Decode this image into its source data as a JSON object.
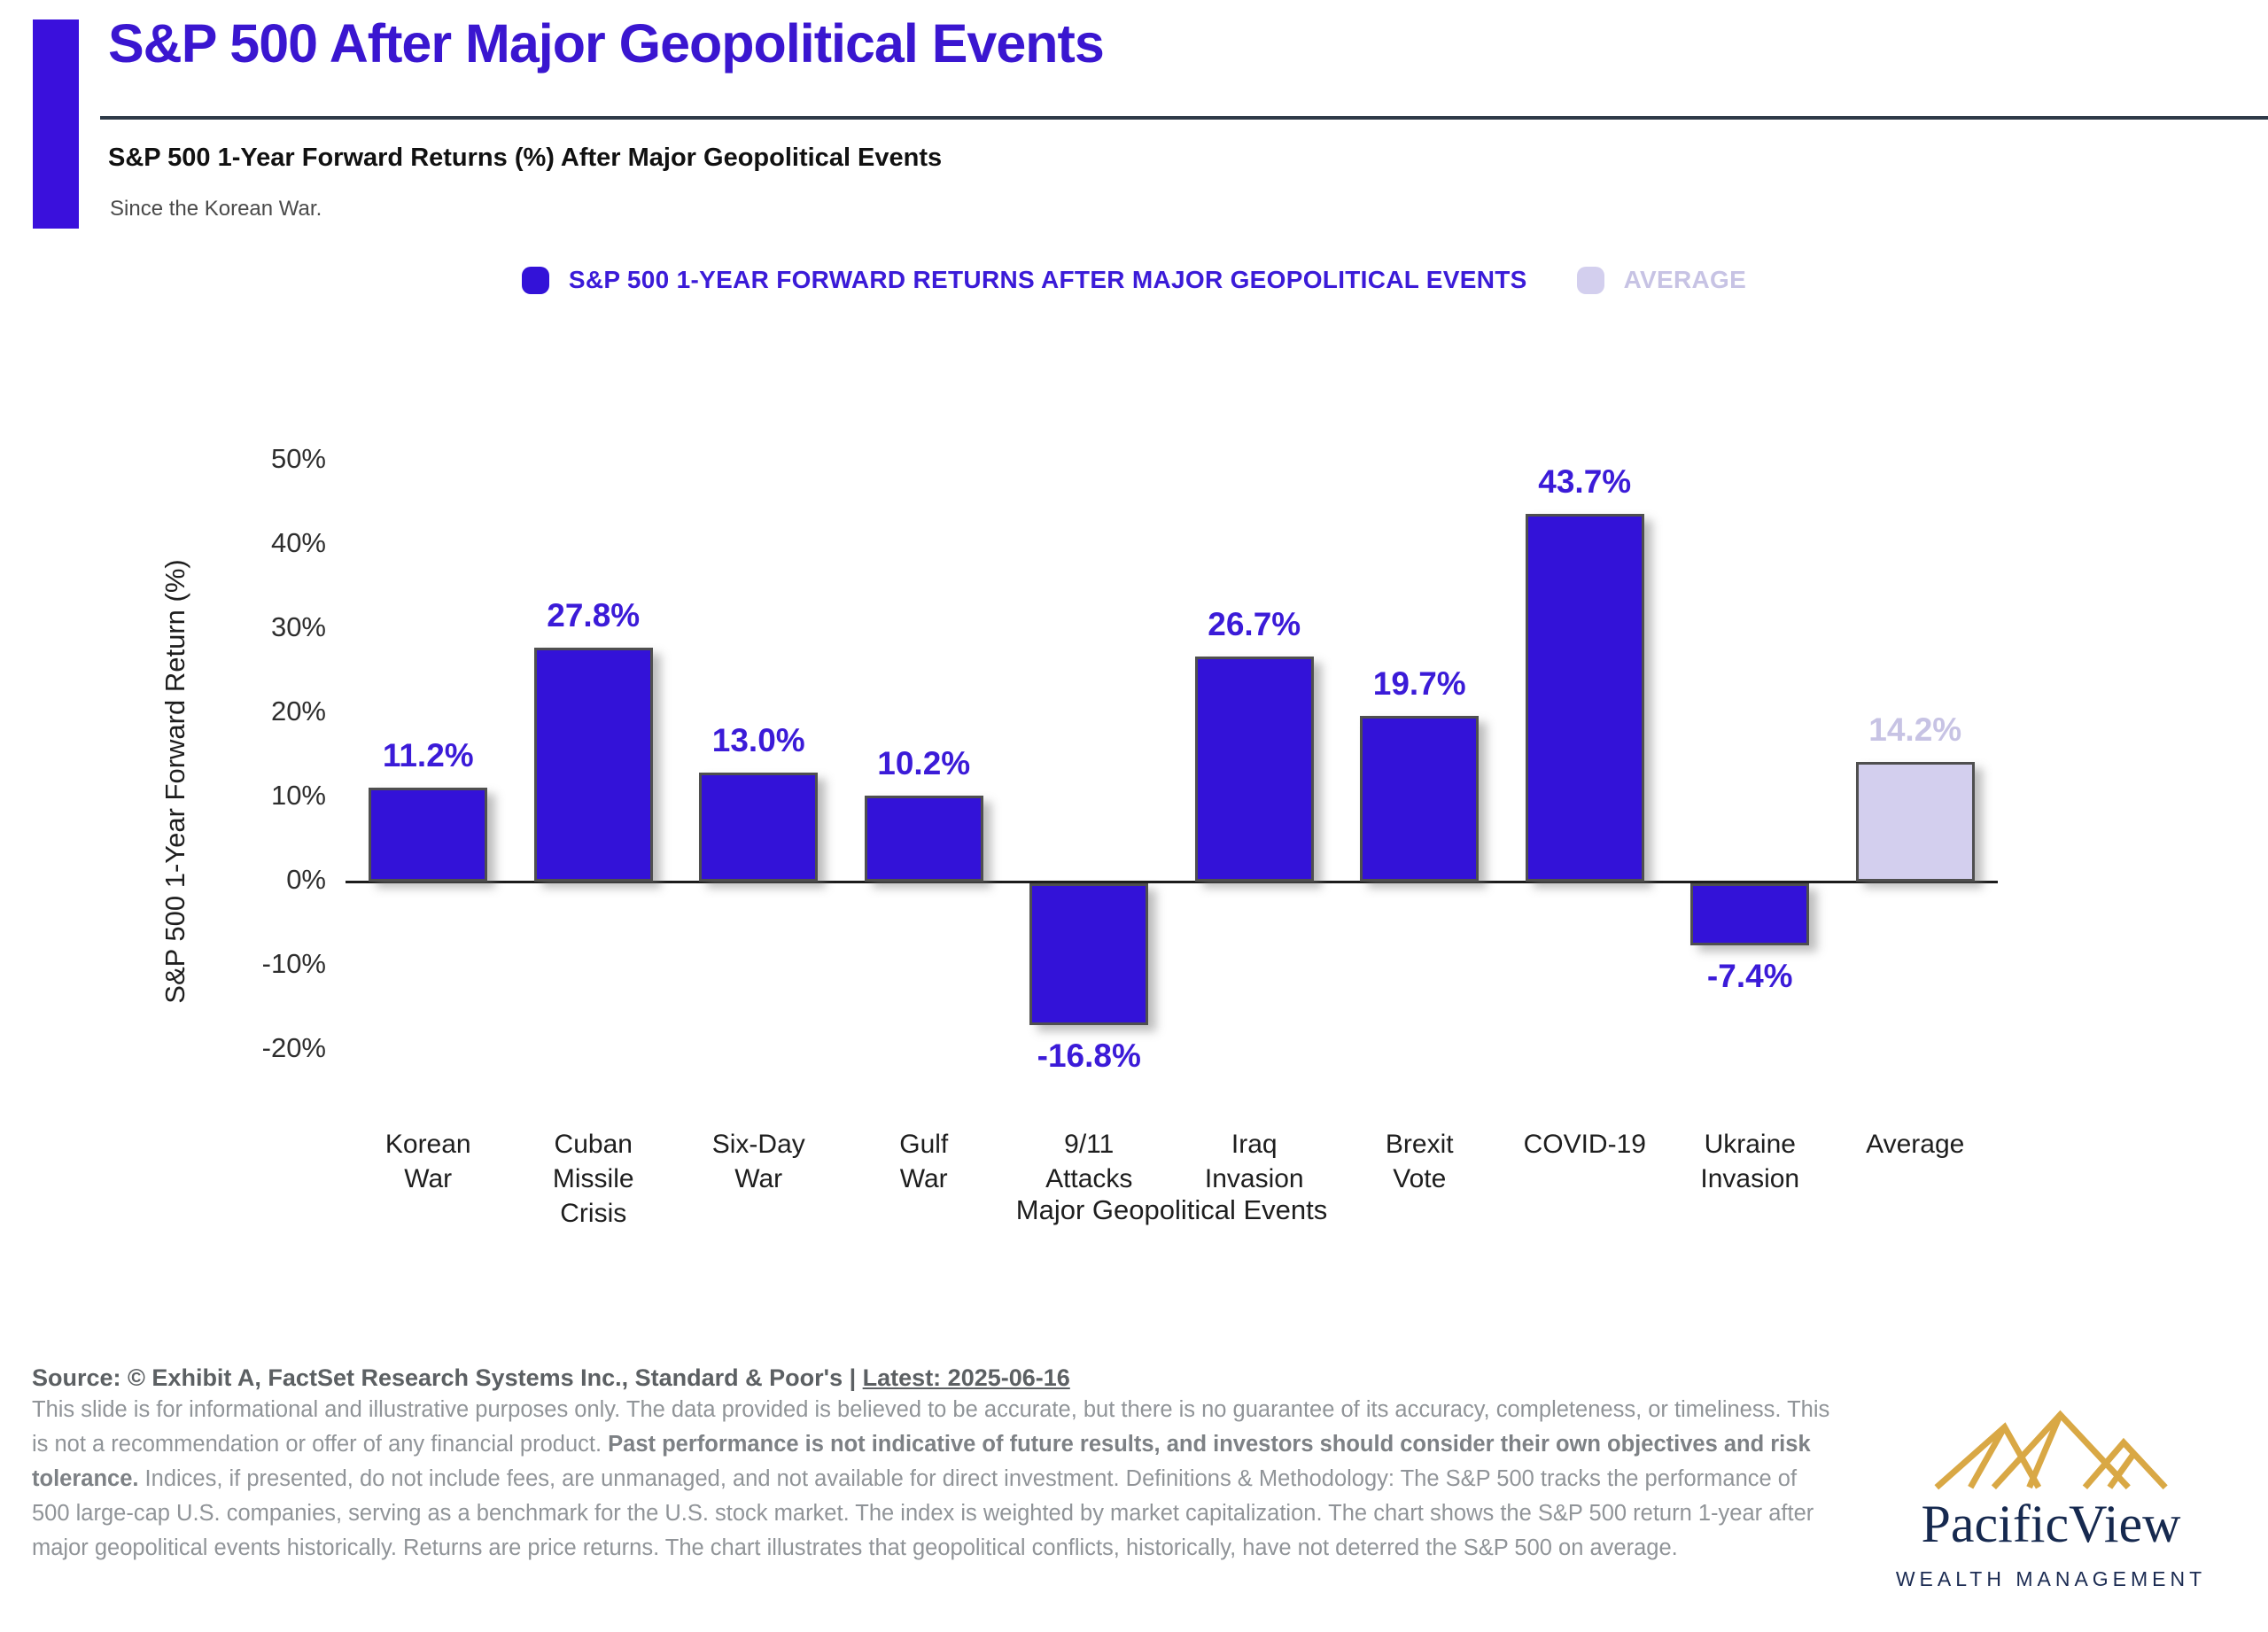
{
  "header": {
    "title": "S&P 500 After Major Geopolitical Events",
    "subtitle": "S&P 500 1-Year Forward Returns (%) After Major Geopolitical Events",
    "subnote": "Since the Korean War.",
    "accent_color": "#3a10dc"
  },
  "legend": [
    {
      "label": "S&P 500 1-YEAR FORWARD RETURNS AFTER MAJOR GEOPOLITICAL EVENTS",
      "swatch_color": "#3312d8",
      "text_color": "#3b1bd8"
    },
    {
      "label": "AVERAGE",
      "swatch_color": "#d3cfee",
      "text_color": "#c7c3e4"
    }
  ],
  "chart_data": {
    "type": "bar",
    "title": "S&P 500 1-Year Forward Returns (%) After Major Geopolitical Events",
    "categories": [
      "Korean\nWar",
      "Cuban\nMissile\nCrisis",
      "Six-Day\nWar",
      "Gulf\nWar",
      "9/11\nAttacks",
      "Iraq\nInvasion",
      "Brexit\nVote",
      "COVID-19",
      "Ukraine\nInvasion",
      "Average"
    ],
    "values": [
      11.2,
      27.8,
      13.0,
      10.2,
      -16.8,
      26.7,
      19.7,
      43.7,
      -7.4,
      14.2
    ],
    "value_labels": [
      "11.2%",
      "27.8%",
      "13.0%",
      "10.2%",
      "-16.8%",
      "26.7%",
      "19.7%",
      "43.7%",
      "-7.4%",
      "14.2%"
    ],
    "bar_colors": [
      "#3312d8",
      "#3312d8",
      "#3312d8",
      "#3312d8",
      "#3312d8",
      "#3312d8",
      "#3312d8",
      "#3312d8",
      "#3312d8",
      "#d3cfee"
    ],
    "label_colors": [
      "#3b1bd8",
      "#3b1bd8",
      "#3b1bd8",
      "#3b1bd8",
      "#3b1bd8",
      "#3b1bd8",
      "#3b1bd8",
      "#3b1bd8",
      "#3b1bd8",
      "#c7c3e4"
    ],
    "xlabel": "Major Geopolitical Events",
    "ylabel": "S&P 500 1-Year Forward Return (%)",
    "ylim": [
      -25,
      55
    ],
    "yticks": [
      50,
      40,
      30,
      20,
      10,
      0,
      -10,
      -20
    ],
    "ytick_labels": [
      "50%",
      "40%",
      "30%",
      "20%",
      "10%",
      "0%",
      "-10%",
      "-20%"
    ],
    "grid": false,
    "legend_position": "top"
  },
  "footer": {
    "source_prefix": "Source: © Exhibit A, FactSet Research Systems Inc., Standard & Poor's | ",
    "source_latest": "Latest: 2025-06-16",
    "disclaimer_part1": "This slide is for informational and illustrative purposes only. The data provided is believed to be accurate, but there is no guarantee of its accuracy, completeness, or timeliness. This is not a recommendation or offer of any financial product. ",
    "disclaimer_bold": "Past performance is not indicative of future results, and investors should consider their own objectives and risk tolerance.",
    "disclaimer_part2": " Indices, if presented, do not include fees, are unmanaged, and not available for direct investment. Definitions & Methodology: The S&P 500 tracks the performance of 500 large-cap U.S. companies, serving as a benchmark for the U.S. stock market. The index is weighted by market capitalization. The chart shows the S&P 500 return 1-year after major geopolitical events historically. Returns are price returns. The chart illustrates that geopolitical conflicts, historically, have not deterred the S&P 500 on average."
  },
  "logo": {
    "name": "PacificView",
    "tagline": "WEALTH MANAGEMENT",
    "mountain_color": "#d9a845",
    "text_color": "#16294f"
  }
}
